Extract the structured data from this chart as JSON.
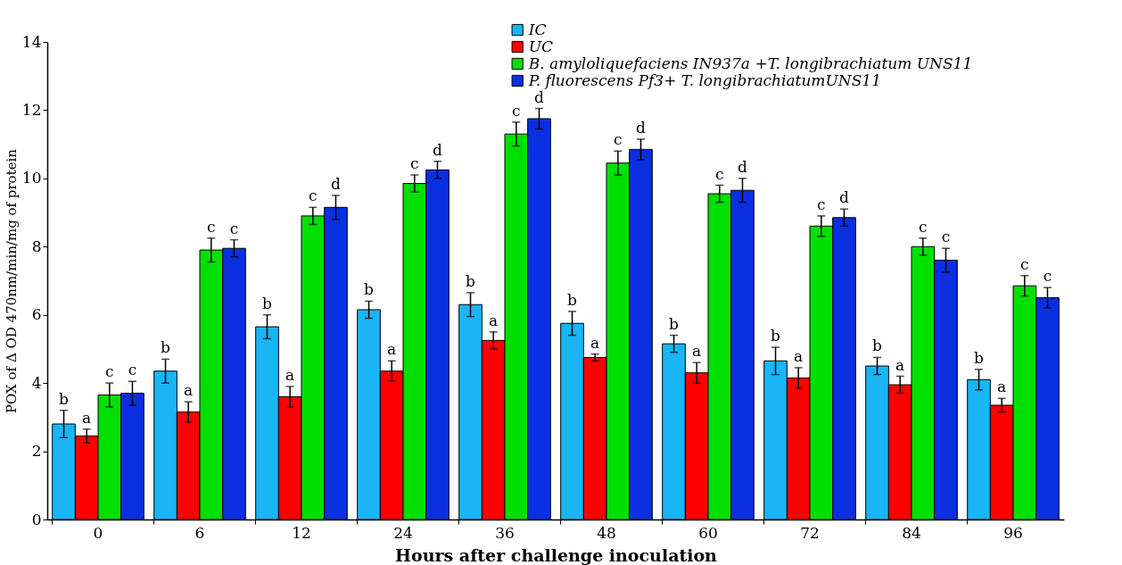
{
  "chart_data": {
    "type": "bar",
    "xlabel": "Hours after challenge inoculation",
    "ylabel": "POX of Δ OD 470nm/min/mg of protein",
    "categories": [
      "0",
      "6",
      "12",
      "24",
      "36",
      "48",
      "60",
      "72",
      "84",
      "96"
    ],
    "ylim": [
      0,
      14
    ],
    "yticks": [
      0,
      2,
      4,
      6,
      8,
      10,
      12,
      14
    ],
    "grid": false,
    "legend": "top",
    "series": [
      {
        "name": "IC",
        "color": "#19b5f5",
        "values": [
          2.8,
          4.35,
          5.65,
          6.15,
          6.3,
          5.75,
          5.15,
          4.65,
          4.5,
          4.1
        ],
        "errors": [
          0.4,
          0.35,
          0.35,
          0.25,
          0.35,
          0.35,
          0.25,
          0.4,
          0.25,
          0.3
        ],
        "value_labels": [
          "b",
          "b",
          "b",
          "b",
          "b",
          "b",
          "b",
          "b",
          "b",
          "b"
        ]
      },
      {
        "name": "UC",
        "color": "#ff0000",
        "values": [
          2.45,
          3.15,
          3.6,
          4.35,
          5.25,
          4.75,
          4.3,
          4.15,
          3.95,
          3.35
        ],
        "errors": [
          0.2,
          0.3,
          0.3,
          0.3,
          0.25,
          0.1,
          0.3,
          0.3,
          0.25,
          0.2
        ],
        "value_labels": [
          "a",
          "a",
          "a",
          "a",
          "a",
          "a",
          "a",
          "a",
          "a",
          "a"
        ]
      },
      {
        "name": "B. amyloliquefaciens IN937a +T. longibrachiatum UNS11",
        "color": "#00e000",
        "values": [
          3.65,
          7.9,
          8.9,
          9.85,
          11.3,
          10.45,
          9.55,
          8.6,
          8.0,
          6.85
        ],
        "errors": [
          0.35,
          0.35,
          0.25,
          0.25,
          0.35,
          0.35,
          0.25,
          0.3,
          0.25,
          0.3
        ],
        "value_labels": [
          "c",
          "c",
          "c",
          "c",
          "c",
          "c",
          "c",
          "c",
          "c",
          "c"
        ]
      },
      {
        "name": "P. fluorescens Pf3+ T. longibrachiatumUNS11",
        "color": "#0a2fe0",
        "values": [
          3.7,
          7.95,
          9.15,
          10.25,
          11.75,
          10.85,
          9.65,
          8.85,
          7.6,
          6.5
        ],
        "errors": [
          0.35,
          0.25,
          0.35,
          0.25,
          0.3,
          0.3,
          0.35,
          0.25,
          0.35,
          0.3
        ],
        "value_labels": [
          "c",
          "c",
          "d",
          "d",
          "d",
          "d",
          "d",
          "d",
          "c",
          "c"
        ]
      }
    ]
  }
}
